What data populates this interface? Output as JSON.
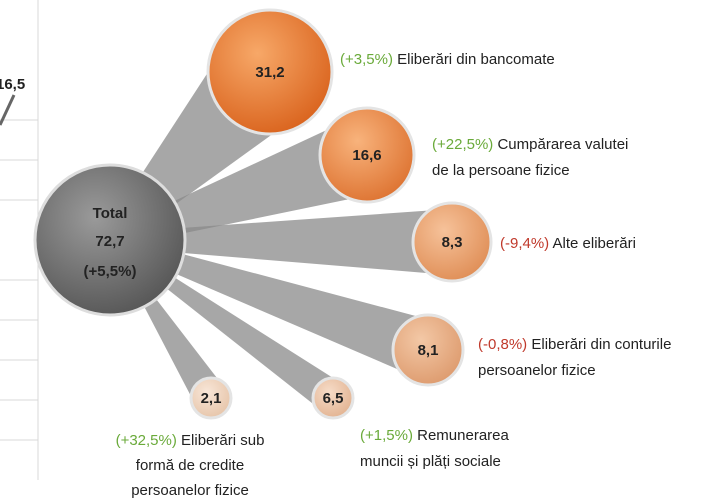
{
  "left_fragment": "16,5",
  "total": {
    "label": "Total",
    "value": "72,7",
    "change": "(+5,5%)"
  },
  "nodes": [
    {
      "value": "31,2",
      "change": "(+3,5%)",
      "label_lines": [
        "Eliberări din bancomate"
      ]
    },
    {
      "value": "16,6",
      "change": "(+22,5%)",
      "label_lines": [
        "Cumpărarea valutei",
        "de la persoane fizice"
      ]
    },
    {
      "value": "8,3",
      "change": "(-9,4%)",
      "label_lines": [
        "Alte eliberări"
      ]
    },
    {
      "value": "8,1",
      "change": "(-0,8%)",
      "label_lines": [
        "Eliberări din conturile",
        "persoanelor fizice"
      ]
    },
    {
      "value": "6,5",
      "change": "(+1,5%)",
      "label_lines": [
        "Remunerarea",
        "muncii și plăți sociale"
      ]
    },
    {
      "value": "2,1",
      "change": "(+32,5%)",
      "label_lines": [
        "Eliberări sub",
        "formă de credite",
        "persoanelor fizice"
      ]
    }
  ]
}
